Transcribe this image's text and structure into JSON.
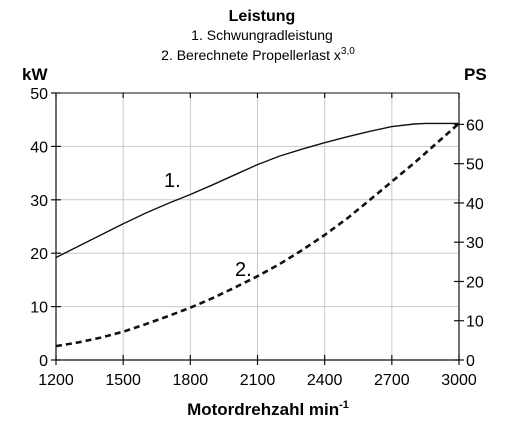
{
  "chart_data": {
    "type": "line",
    "title": "Leistung",
    "subtitle_lines": [
      "1. Schwungradleistung",
      "2. Berechnete Propellerlast x"
    ],
    "subtitle_exponent": "3,0",
    "xlabel": "Motordrehzahl min",
    "xlabel_superscript": "-1",
    "ylabel_left": "kW",
    "ylabel_right": "PS",
    "xlim": [
      1200,
      3000
    ],
    "ylim_left": [
      0,
      50
    ],
    "ylim_right": [
      0,
      68
    ],
    "x_ticks": [
      1200,
      1500,
      1800,
      2100,
      2400,
      2700,
      3000
    ],
    "y_ticks_left": [
      0,
      10,
      20,
      30,
      40,
      50
    ],
    "y_ticks_right": [
      0,
      10,
      20,
      30,
      40,
      50,
      60
    ],
    "grid": true,
    "series": [
      {
        "name": "1.",
        "style": "solid",
        "x": [
          1200,
          1300,
          1400,
          1500,
          1600,
          1700,
          1800,
          1900,
          2000,
          2100,
          2200,
          2300,
          2400,
          2500,
          2600,
          2700,
          2800,
          2850,
          2900,
          3000
        ],
        "y": [
          19.2,
          21.3,
          23.4,
          25.5,
          27.5,
          29.3,
          31.0,
          32.8,
          34.7,
          36.6,
          38.2,
          39.5,
          40.7,
          41.8,
          42.8,
          43.7,
          44.2,
          44.3,
          44.3,
          44.3
        ]
      },
      {
        "name": "2.",
        "style": "dashed",
        "x": [
          1200,
          1300,
          1400,
          1500,
          1600,
          1700,
          1800,
          1900,
          2000,
          2100,
          2200,
          2300,
          2400,
          2500,
          2600,
          2700,
          2800,
          2900,
          3000
        ],
        "y": [
          2.6,
          3.3,
          4.2,
          5.3,
          6.7,
          8.2,
          9.8,
          11.6,
          13.6,
          15.7,
          18.0,
          20.6,
          23.4,
          26.5,
          29.9,
          33.4,
          36.9,
          40.6,
          44.3
        ]
      }
    ]
  }
}
